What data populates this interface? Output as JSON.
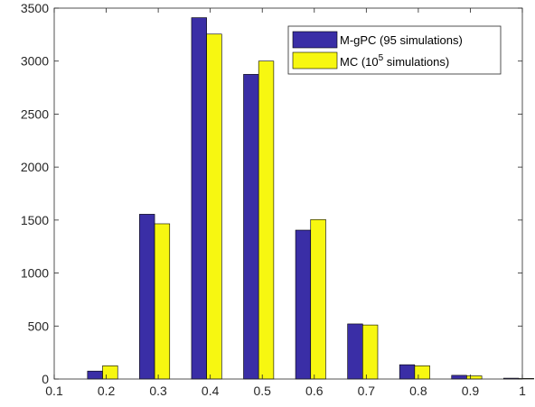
{
  "chart_data": {
    "type": "bar",
    "title": "",
    "xlabel": "",
    "ylabel": "",
    "xlim": [
      0.1,
      1.0
    ],
    "ylim": [
      0,
      3500
    ],
    "xticks": [
      "0.1",
      "0.2",
      "0.3",
      "0.4",
      "0.5",
      "0.6",
      "0.7",
      "0.8",
      "0.9",
      "1"
    ],
    "yticks": [
      "0",
      "500",
      "1000",
      "1500",
      "2000",
      "2500",
      "3000",
      "3500"
    ],
    "x": [
      0.2,
      0.3,
      0.4,
      0.5,
      0.6,
      0.7,
      0.8,
      0.9,
      1.0
    ],
    "grid": false,
    "legend_position": "top-right",
    "series": [
      {
        "name": "M-gPC (95 simulations)",
        "color": "#3a2ea6",
        "values": [
          75,
          1555,
          3410,
          2875,
          1405,
          520,
          135,
          35,
          8
        ]
      },
      {
        "name": "MC (10^5 simulations)",
        "legend_main": "MC (10",
        "legend_sup": "5",
        "legend_tail": " simulations)",
        "color": "#f7f711",
        "values": [
          125,
          1465,
          3255,
          3000,
          1505,
          510,
          125,
          30,
          5
        ]
      }
    ]
  }
}
